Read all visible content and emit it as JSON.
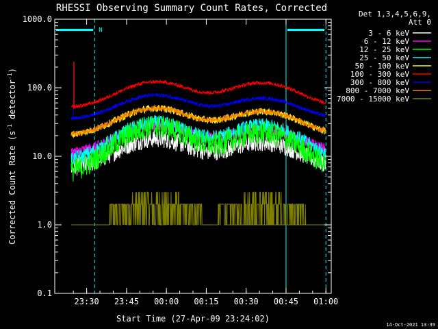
{
  "chart_data": {
    "type": "line",
    "title": "RHESSI Observing Summary Count Rates, Corrected",
    "xlabel": "Start Time (27-Apr-09 23:24:02)",
    "ylabel_main": "Corrected Count Rate (s",
    "ylabel_sup1": "-1",
    "ylabel_mid": " detector",
    "ylabel_sup2": "-1",
    "ylabel_end": ")",
    "y_scale": "log",
    "ylim": [
      0.1,
      1000
    ],
    "xlim_minutes": [
      -6,
      98
    ],
    "x_ticks": [
      {
        "m": 6,
        "label": "23:30"
      },
      {
        "m": 21,
        "label": "23:45"
      },
      {
        "m": 36,
        "label": "00:00"
      },
      {
        "m": 51,
        "label": "00:15"
      },
      {
        "m": 66,
        "label": "00:30"
      },
      {
        "m": 81,
        "label": "00:45"
      },
      {
        "m": 96,
        "label": "01:00"
      }
    ],
    "y_ticks": [
      {
        "v": 1000,
        "label": "1000.0"
      },
      {
        "v": 100,
        "label": "100.0"
      },
      {
        "v": 10,
        "label": "10.0"
      },
      {
        "v": 1,
        "label": "1.0"
      },
      {
        "v": 0.1,
        "label": "0.1"
      }
    ],
    "legend_header": [
      "Det 1,3,4,5,6,9,",
      "Att 0"
    ],
    "legend_placement": "right",
    "series": [
      {
        "name": "3 - 6 keV",
        "color": "#ffffff",
        "base": 6.5,
        "peak1": 18,
        "peak2": 16,
        "noise": 0.1
      },
      {
        "name": "6 - 12 keV",
        "color": "#ff00ff",
        "base": 11,
        "peak1": 28,
        "peak2": 25,
        "noise": 0.06
      },
      {
        "name": "12 - 25 keV",
        "color": "#00ff00",
        "base": 5.5,
        "peak1": 27,
        "peak2": 22,
        "noise": 0.13
      },
      {
        "name": "25 - 50 keV",
        "color": "#00ffff",
        "base": 8.5,
        "peak1": 31,
        "peak2": 28,
        "noise": 0.08
      },
      {
        "name": "50 - 100 keV",
        "color": "#ffff00",
        "base": 20,
        "peak1": 50,
        "peak2": 45,
        "noise": 0.04
      },
      {
        "name": "100 - 300 keV",
        "color": "#ff0000",
        "base": 50,
        "peak1": 122,
        "peak2": 118,
        "noise": 0.02
      },
      {
        "name": "300 - 800 keV",
        "color": "#0000ff",
        "base": 34,
        "peak1": 78,
        "peak2": 70,
        "noise": 0.02
      },
      {
        "name": "800 - 7000 keV",
        "color": "#ff8000",
        "base": 20,
        "peak1": 50,
        "peak2": 45,
        "noise": 0.03
      },
      {
        "name": "7000 - 15000 keV",
        "color": "#808000",
        "base": 1,
        "peak1": 3,
        "peak2": 2,
        "noise": 0
      }
    ],
    "peaks_minutes": [
      32,
      72
    ],
    "peak_width_minutes": 12,
    "spike_minute": 1.2,
    "spike_value": 240,
    "saa_bars": [
      {
        "from": -6,
        "to": 9,
        "y": 700,
        "label": "N"
      },
      {
        "from": 81,
        "to": 96,
        "y": 700,
        "label": ""
      }
    ],
    "solid_vlines": [
      -6,
      81
    ],
    "dashed_vlines": [
      9,
      96
    ]
  },
  "footer_timestamp": "14-Oct-2021 13:39"
}
